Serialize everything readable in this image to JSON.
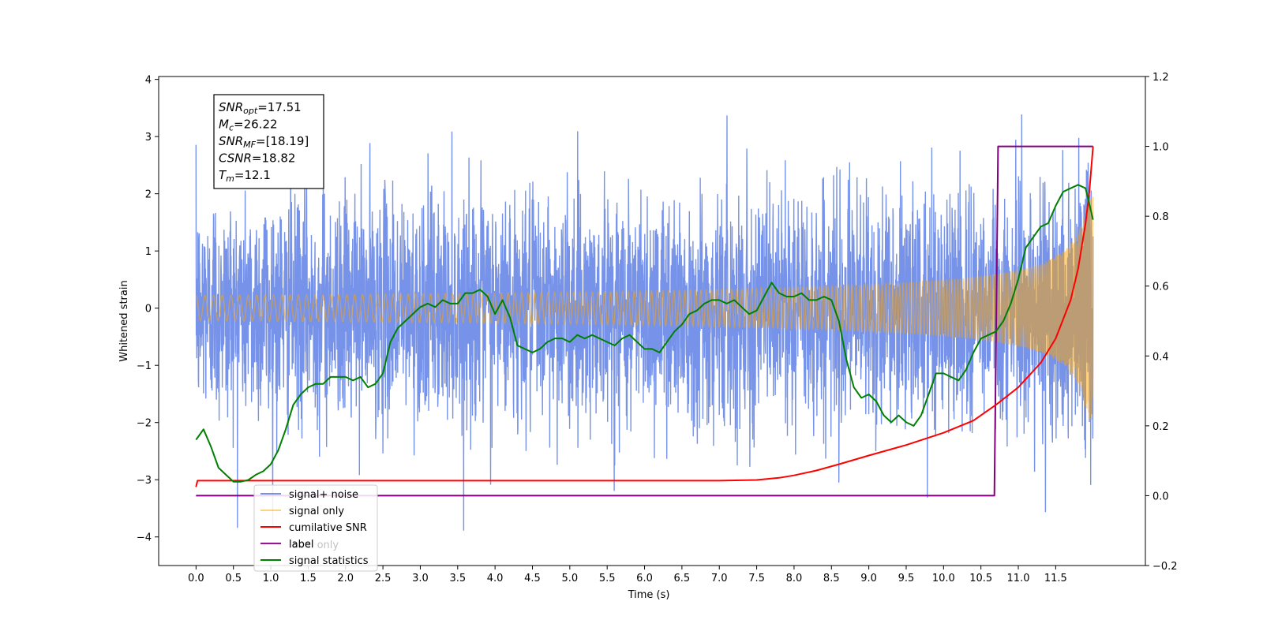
{
  "chart_data": {
    "type": "line",
    "xlabel": "Time (s)",
    "ylabel": "Whitened strain",
    "xlim": [
      -0.5,
      12.7
    ],
    "ylim": [
      -4.5,
      4.05
    ],
    "y2lim": [
      -0.2,
      1.2
    ],
    "x_ticks": [
      "0.0",
      "0.5",
      "1.0",
      "1.5",
      "2.0",
      "2.5",
      "3.0",
      "3.5",
      "4.0",
      "4.5",
      "5.0",
      "5.5",
      "6.0",
      "6.5",
      "7.0",
      "7.5",
      "8.0",
      "8.5",
      "9.0",
      "9.5",
      "10.0",
      "10.5",
      "11.0",
      "11.5"
    ],
    "y_ticks": [
      "4",
      "3",
      "2",
      "1",
      "0",
      "−1",
      "−2",
      "−3",
      "−4"
    ],
    "y2_ticks": [
      "1.2",
      "1.0",
      "0.8",
      "0.6",
      "0.4",
      "0.2",
      "0.0",
      "−0.2"
    ],
    "legend_position": "lower-left",
    "annotation": [
      {
        "main": "SNR",
        "sub": "opt",
        "value": "=17.51"
      },
      {
        "main": "M",
        "sub": "c",
        "value": "=26.22"
      },
      {
        "main": "SNR",
        "sub": "MF",
        "value": "=[18.19]"
      },
      {
        "main": "CSNR",
        "sub": "",
        "value": "=18.82"
      },
      {
        "main": "T",
        "sub": "m",
        "value": "=12.1"
      }
    ],
    "series": [
      {
        "name": "signal+ noise",
        "axis": "left",
        "color": "#4169e1",
        "description": "whitened strain, noise with standard deviation ~1 plus chirp",
        "x_range": [
          0,
          12.0
        ]
      },
      {
        "name": "signal only",
        "axis": "left",
        "color": "#ffa500",
        "description": "chirp waveform, amplitude growing to ~1.9 at 12.0 s",
        "x_range": [
          0,
          12.0
        ]
      },
      {
        "name": "cumilative SNR",
        "axis": "right",
        "color": "#ff0000",
        "x": [
          0,
          0.02,
          1.0,
          2.0,
          3.0,
          4.0,
          5.0,
          6.0,
          7.0,
          7.5,
          7.8,
          8.0,
          8.3,
          8.6,
          9.0,
          9.5,
          10.0,
          10.4,
          10.7,
          11.0,
          11.3,
          11.5,
          11.7,
          11.8,
          11.9,
          11.95,
          12.0
        ],
        "y": [
          0.025,
          0.043,
          0.043,
          0.043,
          0.043,
          0.043,
          0.043,
          0.043,
          0.043,
          0.045,
          0.051,
          0.058,
          0.072,
          0.09,
          0.115,
          0.145,
          0.18,
          0.215,
          0.26,
          0.31,
          0.38,
          0.45,
          0.56,
          0.65,
          0.78,
          0.87,
          1.0
        ]
      },
      {
        "name": "label",
        "axis": "right",
        "color": "#800080",
        "x": [
          0,
          10.68,
          10.73,
          12.0
        ],
        "y": [
          0.0,
          0.0,
          1.0,
          1.0
        ]
      },
      {
        "name": "label only",
        "axis": "right",
        "color": "#ffb6c1",
        "x": [],
        "y": []
      },
      {
        "name": "signal statistics",
        "axis": "right",
        "color": "#008000",
        "x": [
          0,
          0.1,
          0.2,
          0.3,
          0.4,
          0.5,
          0.6,
          0.7,
          0.8,
          0.9,
          1.0,
          1.1,
          1.2,
          1.3,
          1.4,
          1.5,
          1.6,
          1.7,
          1.8,
          1.9,
          2.0,
          2.1,
          2.2,
          2.3,
          2.4,
          2.5,
          2.6,
          2.7,
          2.8,
          2.9,
          3.0,
          3.1,
          3.2,
          3.3,
          3.4,
          3.5,
          3.6,
          3.7,
          3.8,
          3.9,
          4.0,
          4.1,
          4.2,
          4.3,
          4.4,
          4.5,
          4.6,
          4.7,
          4.8,
          4.9,
          5.0,
          5.1,
          5.2,
          5.3,
          5.4,
          5.5,
          5.6,
          5.7,
          5.8,
          5.9,
          6.0,
          6.1,
          6.2,
          6.3,
          6.4,
          6.5,
          6.6,
          6.7,
          6.8,
          6.9,
          7.0,
          7.1,
          7.2,
          7.3,
          7.4,
          7.5,
          7.6,
          7.7,
          7.8,
          7.9,
          8.0,
          8.1,
          8.2,
          8.3,
          8.4,
          8.5,
          8.6,
          8.7,
          8.8,
          8.9,
          9.0,
          9.1,
          9.2,
          9.3,
          9.4,
          9.5,
          9.6,
          9.7,
          9.8,
          9.9,
          10.0,
          10.1,
          10.2,
          10.3,
          10.4,
          10.5,
          10.6,
          10.7,
          10.8,
          10.9,
          11.0,
          11.1,
          11.2,
          11.3,
          11.4,
          11.5,
          11.6,
          11.7,
          11.8,
          11.9,
          12.0
        ],
        "y": [
          0.16,
          0.19,
          0.14,
          0.08,
          0.06,
          0.04,
          0.04,
          0.045,
          0.06,
          0.07,
          0.09,
          0.13,
          0.19,
          0.26,
          0.29,
          0.31,
          0.32,
          0.32,
          0.34,
          0.34,
          0.34,
          0.33,
          0.34,
          0.31,
          0.32,
          0.35,
          0.44,
          0.48,
          0.5,
          0.52,
          0.54,
          0.55,
          0.54,
          0.56,
          0.55,
          0.55,
          0.58,
          0.58,
          0.59,
          0.57,
          0.52,
          0.56,
          0.51,
          0.43,
          0.42,
          0.41,
          0.42,
          0.44,
          0.45,
          0.45,
          0.44,
          0.46,
          0.45,
          0.46,
          0.45,
          0.44,
          0.43,
          0.45,
          0.46,
          0.44,
          0.42,
          0.42,
          0.41,
          0.44,
          0.47,
          0.49,
          0.52,
          0.53,
          0.55,
          0.56,
          0.56,
          0.55,
          0.56,
          0.54,
          0.52,
          0.53,
          0.57,
          0.61,
          0.58,
          0.57,
          0.57,
          0.58,
          0.56,
          0.56,
          0.57,
          0.56,
          0.5,
          0.39,
          0.31,
          0.28,
          0.29,
          0.27,
          0.23,
          0.21,
          0.23,
          0.21,
          0.2,
          0.23,
          0.29,
          0.35,
          0.35,
          0.34,
          0.33,
          0.36,
          0.41,
          0.45,
          0.46,
          0.47,
          0.5,
          0.55,
          0.62,
          0.71,
          0.74,
          0.77,
          0.78,
          0.83,
          0.87,
          0.88,
          0.89,
          0.88,
          0.79
        ]
      }
    ]
  }
}
